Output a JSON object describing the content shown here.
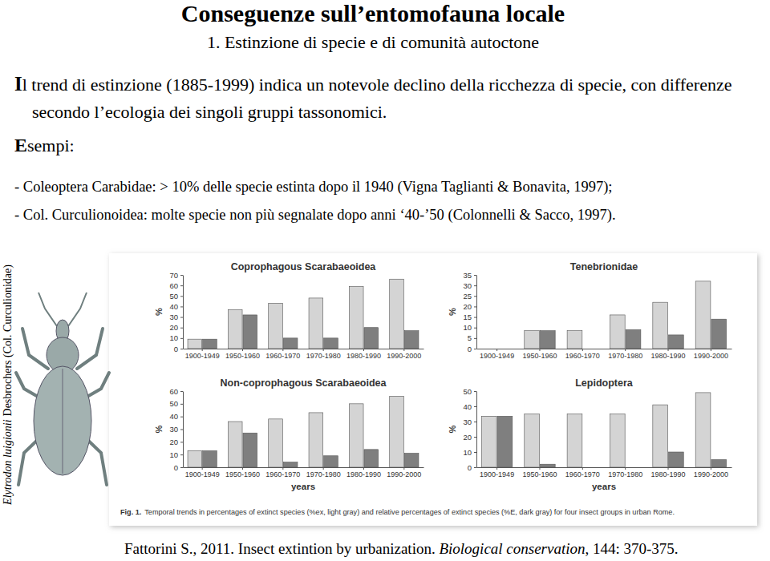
{
  "slide": {
    "title": "Conseguenze sull’entomofauna locale",
    "subtitle": "1. Estinzione di specie e di comunità autoctone",
    "paragraph": "Il trend di estinzione (1885-1999) indica un notevole declino della ricchezza di specie, con differenze secondo l’ecologia dei singoli gruppi tassonomici.",
    "examples_heading": "Esempi:",
    "bullets": [
      "- Coleoptera Carabidae: > 10% delle specie estinta dopo il 1940 (Vigna Taglianti & Bonavita, 1997);",
      "- Col. Curculionoidea: molte specie non più segnalate dopo anni ‘40-’50 (Colonnelli & Sacco, 1997)."
    ],
    "image_caption": {
      "species": "Elytrodon luigionii",
      "rest": "Desbrochers (Col. Curculionidae)"
    },
    "figure_caption": {
      "label": "Fig. 1.",
      "text": "Temporal trends in percentages of extinct species (%ex, light gray) and relative percentages of extinct species (%E, dark gray) for four insect groups in urban Rome."
    },
    "citation": {
      "authors": "Fattorini S., 2011. Insect extintion by urbanization. ",
      "journal": "Biological conservation",
      "rest": ", 144: 370-375."
    }
  },
  "chart_data": [
    {
      "type": "bar",
      "title": "Coprophagous Scarabaeoidea",
      "y_label": "%",
      "categories": [
        "1900-1949",
        "1950-1960",
        "1960-1970",
        "1970-1980",
        "1980-1990",
        "1990-2000"
      ],
      "series": [
        {
          "color": "#d4d4d4",
          "values": [
            9,
            37,
            43,
            48,
            59,
            66
          ]
        },
        {
          "color": "#7f7f7f",
          "values": [
            9,
            32,
            10,
            10,
            20,
            17
          ]
        }
      ],
      "ylim": [
        0,
        70
      ],
      "yticks": [
        0,
        10,
        20,
        30,
        40,
        50,
        60,
        70
      ],
      "grid": false
    },
    {
      "type": "bar",
      "title": "Tenebrionidae",
      "y_label": "%",
      "categories": [
        "1900-1949",
        "1950-1960",
        "1960-1970",
        "1970-1980",
        "1980-1990",
        "1990-2000"
      ],
      "series": [
        {
          "color": "#d4d4d4",
          "values": [
            0,
            8.5,
            8.5,
            16,
            22,
            32
          ]
        },
        {
          "color": "#7f7f7f",
          "values": [
            0,
            8.5,
            0,
            9,
            6.5,
            14
          ]
        }
      ],
      "ylim": [
        0,
        35
      ],
      "yticks": [
        0,
        5,
        10,
        15,
        20,
        25,
        30,
        35
      ],
      "grid": false
    },
    {
      "type": "bar",
      "title": "Non-coprophagous Scarabaeoidea",
      "y_label": "%",
      "x_label": "years",
      "categories": [
        "1900-1949",
        "1950-1960",
        "1960-1970",
        "1970-1980",
        "1980-1990",
        "1990-2000"
      ],
      "series": [
        {
          "color": "#d4d4d4",
          "values": [
            13,
            36,
            38,
            43,
            50,
            56
          ]
        },
        {
          "color": "#7f7f7f",
          "values": [
            13,
            27,
            4,
            9,
            14,
            11
          ]
        }
      ],
      "ylim": [
        0,
        60
      ],
      "yticks": [
        0,
        10,
        20,
        30,
        40,
        50,
        60
      ],
      "grid": false
    },
    {
      "type": "bar",
      "title": "Lepidoptera",
      "y_label": "%",
      "x_label": "years",
      "categories": [
        "1900-1949",
        "1950-1960",
        "1960-1970",
        "1970-1980",
        "1980-1990",
        "1990-2000"
      ],
      "series": [
        {
          "color": "#d4d4d4",
          "values": [
            33.5,
            35,
            35,
            35,
            41,
            49
          ]
        },
        {
          "color": "#7f7f7f",
          "values": [
            33.5,
            2,
            0,
            0,
            10,
            5
          ]
        }
      ],
      "ylim": [
        0,
        50
      ],
      "yticks": [
        0,
        10,
        20,
        30,
        40,
        50
      ],
      "grid": false
    }
  ]
}
